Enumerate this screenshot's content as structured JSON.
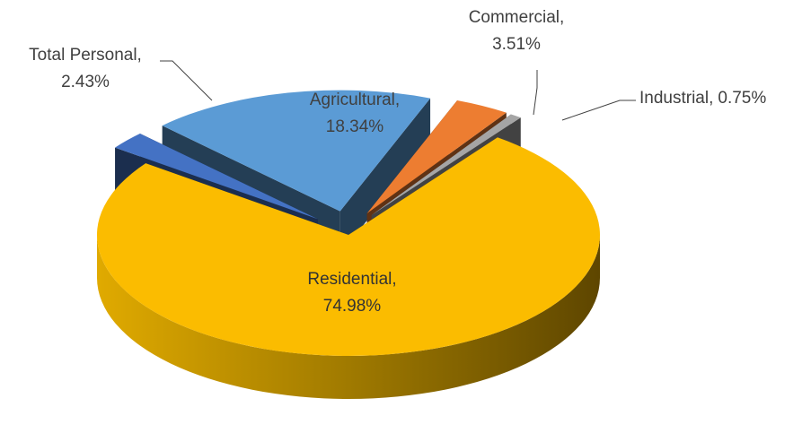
{
  "chart_data": {
    "type": "pie",
    "categories": [
      "Agricultural,",
      "Commercial,",
      "Industrial,",
      "Residential,",
      "Total Personal,"
    ],
    "values": [
      18.34,
      3.51,
      0.75,
      74.98,
      2.43
    ],
    "value_labels": [
      "18.34%",
      "3.51%",
      "0.75%",
      "74.98%",
      "2.43%"
    ],
    "colors": [
      "#5b9bd5",
      "#ed7d31",
      "#a5a5a5",
      "#fbbc00",
      "#4472c4"
    ]
  }
}
